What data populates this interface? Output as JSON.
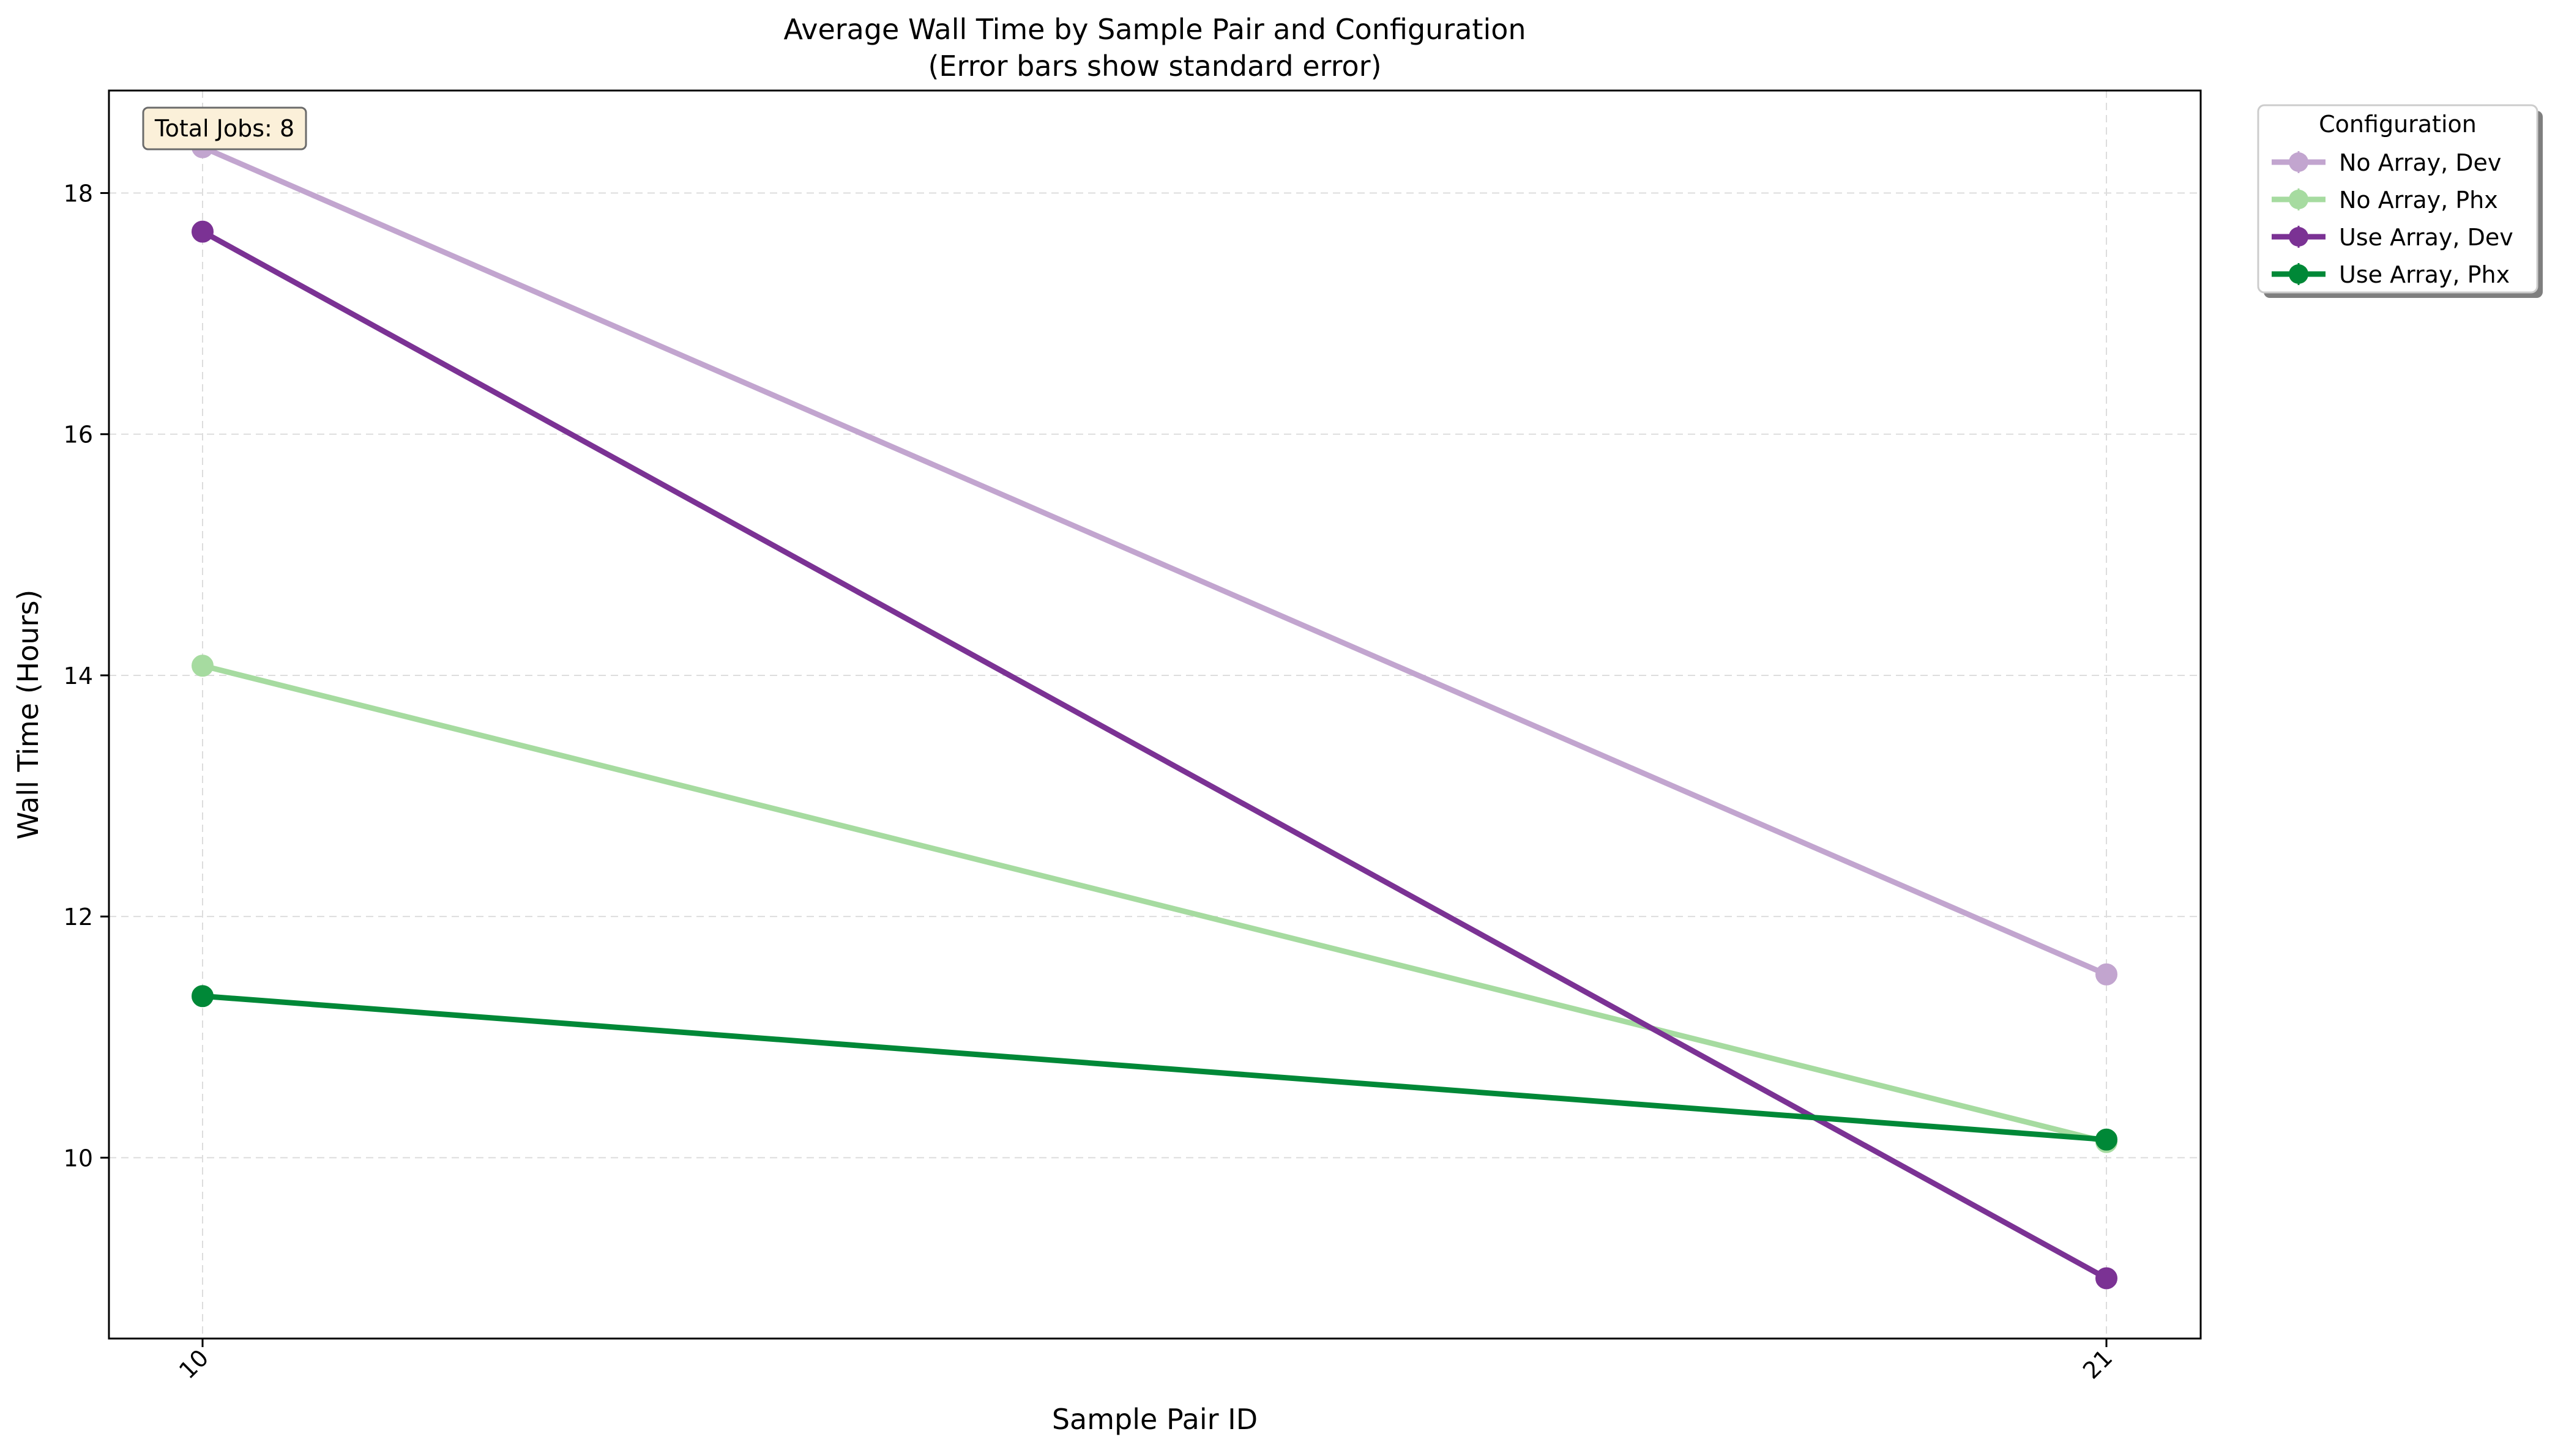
{
  "chart_data": {
    "type": "line",
    "title": "Average Wall Time by Sample Pair and Configuration",
    "subtitle": "(Error bars show standard error)",
    "xlabel": "Sample Pair ID",
    "ylabel": "Wall Time (Hours)",
    "categories": [
      "10",
      "21"
    ],
    "ylim": [
      8.5,
      18.85
    ],
    "yticks": [
      10,
      12,
      14,
      16,
      18
    ],
    "grid": true,
    "legend": {
      "title": "Configuration",
      "placement": "outside-top-right"
    },
    "annotation": "Total Jobs: 8",
    "series": [
      {
        "name": "No Array, Dev",
        "color": "#c2a5cf",
        "values": [
          18.38,
          11.52
        ]
      },
      {
        "name": "No Array, Phx",
        "color": "#a6dba0",
        "values": [
          14.08,
          10.13
        ]
      },
      {
        "name": "Use Array, Dev",
        "color": "#7b3294",
        "values": [
          17.68,
          9.0
        ]
      },
      {
        "name": "Use Array, Phx",
        "color": "#008837",
        "values": [
          11.34,
          10.15
        ]
      }
    ]
  },
  "colors": {
    "annotation_fill": "#fbf0d9",
    "annotation_border": "#6b6b6b",
    "grid": "#dddddd"
  }
}
